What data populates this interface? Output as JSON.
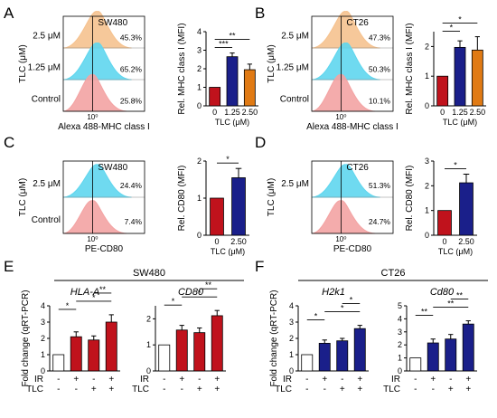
{
  "figure": {
    "panels": [
      {
        "letter": "A",
        "hist_title": "SW480",
        "hist_ylabel": "TLC (μM)",
        "hist_xlabel": "Alexa 488-MHC class I",
        "hist_tick": "10⁰",
        "hist_rows": [
          {
            "label": "2.5 μM",
            "pct": "45.3%",
            "color": "#f5c28f"
          },
          {
            "label": "1.25 μM",
            "pct": "65.2%",
            "color": "#5fd6ee"
          },
          {
            "label": "Control",
            "pct": "25.8%",
            "color": "#f3a3a3"
          }
        ]
      },
      {
        "letter": "B",
        "hist_title": "CT26",
        "hist_ylabel": "TLC (μM)",
        "hist_xlabel": "Alexa 488-MHC class I",
        "hist_tick": "10⁰",
        "hist_rows": [
          {
            "label": "2.5 μM",
            "pct": "47.3%",
            "color": "#f5c28f"
          },
          {
            "label": "1.25 μM",
            "pct": "50.3%",
            "color": "#5fd6ee"
          },
          {
            "label": "Control",
            "pct": "10.1%",
            "color": "#f3a3a3"
          }
        ]
      },
      {
        "letter": "C",
        "hist_title": "SW480",
        "hist_ylabel": "TLC (μM)",
        "hist_xlabel": "PE-CD80",
        "hist_tick": "10⁰",
        "hist_rows": [
          {
            "label": "2.5 μM",
            "pct": "24.4%",
            "color": "#5fd6ee"
          },
          {
            "label": "Control",
            "pct": "7.4%",
            "color": "#f3a3a3"
          }
        ]
      },
      {
        "letter": "D",
        "hist_title": "CT26",
        "hist_ylabel": "TLC (μM)",
        "hist_xlabel": "PE-CD80",
        "hist_tick": "10⁰",
        "hist_rows": [
          {
            "label": "2.5 μM",
            "pct": "51.3%",
            "color": "#5fd6ee"
          },
          {
            "label": "",
            "pct": "24.7%",
            "color": "#f3a3a3"
          }
        ]
      },
      {
        "letter": "E",
        "group_title": "SW480"
      },
      {
        "letter": "F",
        "group_title": "CT26"
      }
    ],
    "matrix": {
      "row_labels": [
        "IR",
        "TLC"
      ],
      "signs": [
        [
          "-",
          "+",
          "-",
          "+"
        ],
        [
          "-",
          "-",
          "+",
          "+"
        ]
      ]
    },
    "colors": {
      "red": "#c0121c",
      "navy": "#1a1f8a",
      "orange": "#e07a14",
      "white": "#ffffff",
      "axis": "#000000"
    }
  },
  "chart_data": [
    {
      "type": "bar",
      "id": "A",
      "categories": [
        "0",
        "1.25",
        "2.50"
      ],
      "values": [
        1.0,
        2.65,
        1.95
      ],
      "errors": [
        0,
        0.2,
        0.3
      ],
      "colors": [
        "#c0121c",
        "#1a1f8a",
        "#e07a14"
      ],
      "title": "",
      "xlabel": "TLC (μM)",
      "ylabel": "Rel. MHC class I (MFI)",
      "ylim": [
        0,
        4
      ],
      "yticks": [
        "0",
        "1",
        "2",
        "3",
        "4"
      ],
      "sig": [
        {
          "from": 0,
          "to": 1,
          "label": "***"
        },
        {
          "from": 0,
          "to": 2,
          "label": "**"
        }
      ]
    },
    {
      "type": "bar",
      "id": "B",
      "categories": [
        "0",
        "1.25",
        "2.50"
      ],
      "values": [
        1.0,
        1.97,
        1.88
      ],
      "errors": [
        0,
        0.22,
        0.45
      ],
      "colors": [
        "#c0121c",
        "#1a1f8a",
        "#e07a14"
      ],
      "title": "",
      "xlabel": "TLC (μM)",
      "ylabel": "Rel. MHC class I (MFI)",
      "ylim": [
        0,
        2.5
      ],
      "yticks": [
        "0",
        "1",
        "2"
      ],
      "sig": [
        {
          "from": 0,
          "to": 1,
          "label": "*"
        },
        {
          "from": 0,
          "to": 2,
          "label": "*"
        }
      ]
    },
    {
      "type": "bar",
      "id": "C",
      "categories": [
        "0",
        "2.50"
      ],
      "values": [
        1.0,
        1.55
      ],
      "errors": [
        0,
        0.25
      ],
      "colors": [
        "#c0121c",
        "#1a1f8a"
      ],
      "title": "",
      "xlabel": "TLC (μM)",
      "ylabel": "Rel. CD80 (MFI)",
      "ylim": [
        0,
        2
      ],
      "yticks": [
        "0",
        "1",
        "2"
      ],
      "sig": [
        {
          "from": 0,
          "to": 1,
          "label": "*"
        }
      ]
    },
    {
      "type": "bar",
      "id": "D",
      "categories": [
        "0",
        "2.50"
      ],
      "values": [
        1.0,
        2.12
      ],
      "errors": [
        0,
        0.35
      ],
      "colors": [
        "#c0121c",
        "#1a1f8a"
      ],
      "title": "",
      "xlabel": "TLC (μM)",
      "ylabel": "Rel. CD80 (MFI)",
      "ylim": [
        0,
        3
      ],
      "yticks": [
        "0",
        "1",
        "2",
        "3"
      ],
      "sig": [
        {
          "from": 0,
          "to": 1,
          "label": "*"
        }
      ]
    },
    {
      "type": "bar",
      "id": "E1",
      "categories": [
        "-/-",
        "+/-",
        "-/+",
        "+/+"
      ],
      "values": [
        1.0,
        2.1,
        1.9,
        3.0
      ],
      "errors": [
        0,
        0.3,
        0.25,
        0.45
      ],
      "colors": [
        "#ffffff",
        "#c0121c",
        "#c0121c",
        "#c0121c"
      ],
      "title": "HLA-A",
      "xlabel": "",
      "ylabel": "Fold change (qRT-PCR)",
      "ylim": [
        0,
        4
      ],
      "yticks": [
        "0",
        "1",
        "2",
        "3",
        "4"
      ],
      "sig": [
        {
          "from": 0,
          "to": 1,
          "label": "*"
        },
        {
          "from": 1,
          "to": 3,
          "label": "*"
        },
        {
          "from": 2,
          "to": 3,
          "label": "**"
        }
      ]
    },
    {
      "type": "bar",
      "id": "E2",
      "categories": [
        "-/-",
        "+/-",
        "-/+",
        "+/+"
      ],
      "values": [
        1.0,
        1.57,
        1.47,
        2.12
      ],
      "errors": [
        0,
        0.18,
        0.18,
        0.2
      ],
      "colors": [
        "#ffffff",
        "#c0121c",
        "#c0121c",
        "#c0121c"
      ],
      "title": "CD80",
      "xlabel": "",
      "ylabel": "",
      "ylim": [
        0,
        2.5
      ],
      "yticks": [
        "0",
        "1",
        "2"
      ],
      "sig": [
        {
          "from": 0,
          "to": 1,
          "label": "*"
        },
        {
          "from": 1,
          "to": 3,
          "label": "*"
        },
        {
          "from": 2,
          "to": 3,
          "label": "**"
        }
      ]
    },
    {
      "type": "bar",
      "id": "F1",
      "categories": [
        "-/-",
        "+/-",
        "-/+",
        "+/+"
      ],
      "values": [
        1.0,
        1.7,
        1.85,
        2.6
      ],
      "errors": [
        0,
        0.2,
        0.15,
        0.2
      ],
      "colors": [
        "#ffffff",
        "#1a1f8a",
        "#1a1f8a",
        "#1a1f8a"
      ],
      "title": "H2k1",
      "xlabel": "",
      "ylabel": "Fold change (qRT-PCR)",
      "ylim": [
        0,
        4
      ],
      "yticks": [
        "0",
        "1",
        "2",
        "3",
        "4"
      ],
      "sig": [
        {
          "from": 0,
          "to": 1,
          "label": "*"
        },
        {
          "from": 1,
          "to": 3,
          "label": "*"
        },
        {
          "from": 2,
          "to": 3,
          "label": "*"
        }
      ]
    },
    {
      "type": "bar",
      "id": "F2",
      "categories": [
        "-/-",
        "+/-",
        "-/+",
        "+/+"
      ],
      "values": [
        1.0,
        2.15,
        2.45,
        3.6
      ],
      "errors": [
        0,
        0.3,
        0.35,
        0.25
      ],
      "colors": [
        "#ffffff",
        "#1a1f8a",
        "#1a1f8a",
        "#1a1f8a"
      ],
      "title": "Cd80",
      "xlabel": "",
      "ylabel": "",
      "ylim": [
        0,
        5
      ],
      "yticks": [
        "0",
        "1",
        "2",
        "3",
        "4",
        "5"
      ],
      "sig": [
        {
          "from": 0,
          "to": 1,
          "label": "**"
        },
        {
          "from": 1,
          "to": 3,
          "label": "**"
        },
        {
          "from": 2,
          "to": 3,
          "label": "**"
        }
      ]
    }
  ]
}
